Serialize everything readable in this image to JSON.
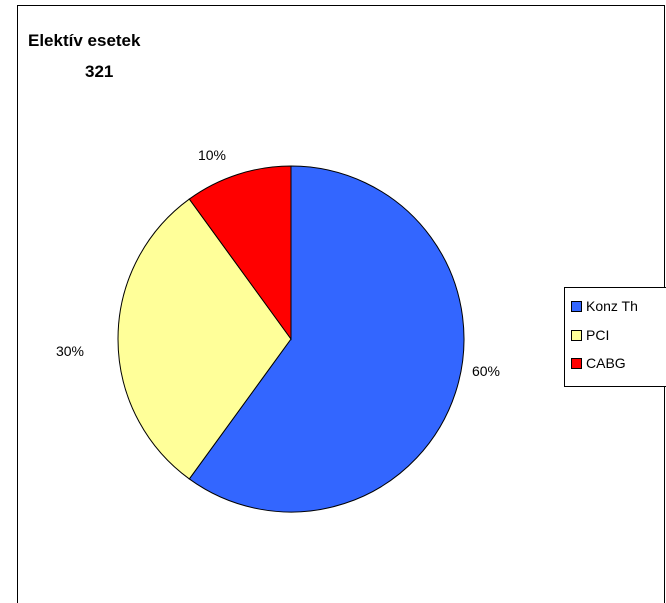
{
  "chart_data": {
    "type": "pie",
    "title": "Elektív esetek",
    "subtitle": "321",
    "categories": [
      "Konz Th",
      "PCI",
      "CABG"
    ],
    "values": [
      60,
      30,
      10
    ],
    "data_labels": [
      "60%",
      "30%",
      "10%"
    ],
    "colors": [
      "#3366ff",
      "#ffff99",
      "#ff0000"
    ],
    "legend_position": "right"
  }
}
